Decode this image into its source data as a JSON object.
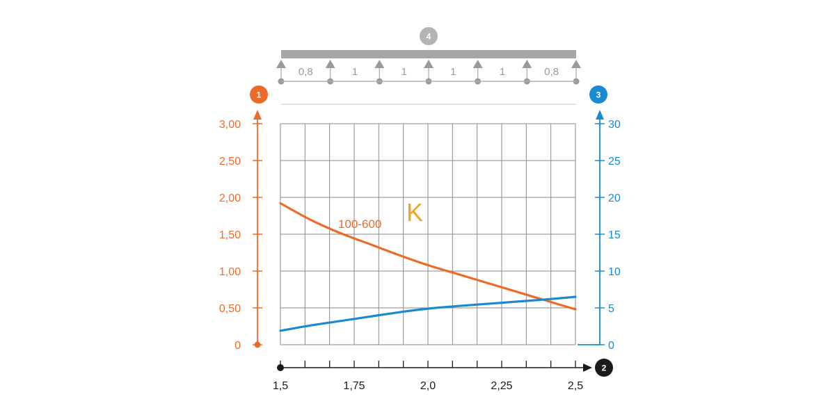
{
  "colors": {
    "orange": "#ee6b27",
    "blue": "#1a8ad0",
    "grid": "#8a8a8a",
    "beam": "#a6a6a6",
    "badge_grey": "#b4b4b4",
    "axis_black": "#1a1a1a",
    "label_yellow": "#f4a323"
  },
  "badges": {
    "left_axis": "1",
    "bottom_axis": "2",
    "right_axis": "3",
    "beam": "4"
  },
  "beam_spans": [
    "0,8",
    "1",
    "1",
    "1",
    "1",
    "0,8"
  ],
  "annotation": "K",
  "chart_data": {
    "type": "line",
    "x_ticks": [
      "1,5",
      "1,75",
      "2,0",
      "2,25",
      "2,5"
    ],
    "x_tick_values": [
      1.5,
      1.75,
      2.0,
      2.25,
      2.5
    ],
    "xlim": [
      1.5,
      2.5
    ],
    "y_left_ticks": [
      "0",
      "0,50",
      "1,00",
      "1,50",
      "2,00",
      "2,50",
      "3,00"
    ],
    "y_left_tick_values": [
      0,
      0.5,
      1.0,
      1.5,
      2.0,
      2.5,
      3.0
    ],
    "ylim_left": [
      0,
      3
    ],
    "y_right_ticks": [
      "0",
      "5",
      "10",
      "15",
      "20",
      "25",
      "30"
    ],
    "y_right_tick_values": [
      0,
      5,
      10,
      15,
      20,
      25,
      30
    ],
    "ylim_right": [
      0,
      30
    ],
    "grid": true,
    "series": [
      {
        "name": "100-600",
        "axis": "left",
        "x": [
          1.5,
          1.6,
          1.7,
          1.8,
          1.9,
          2.0,
          2.1,
          2.2,
          2.3,
          2.4,
          2.5
        ],
        "values": [
          1.92,
          1.7,
          1.52,
          1.37,
          1.22,
          1.08,
          0.96,
          0.84,
          0.72,
          0.6,
          0.48
        ]
      },
      {
        "axis": "right",
        "x": [
          1.5,
          1.6,
          1.7,
          1.8,
          1.9,
          2.0,
          2.1,
          2.2,
          2.3,
          2.4,
          2.5
        ],
        "values": [
          1.9,
          2.6,
          3.2,
          3.8,
          4.4,
          4.9,
          5.25,
          5.55,
          5.85,
          6.15,
          6.5
        ]
      }
    ]
  }
}
